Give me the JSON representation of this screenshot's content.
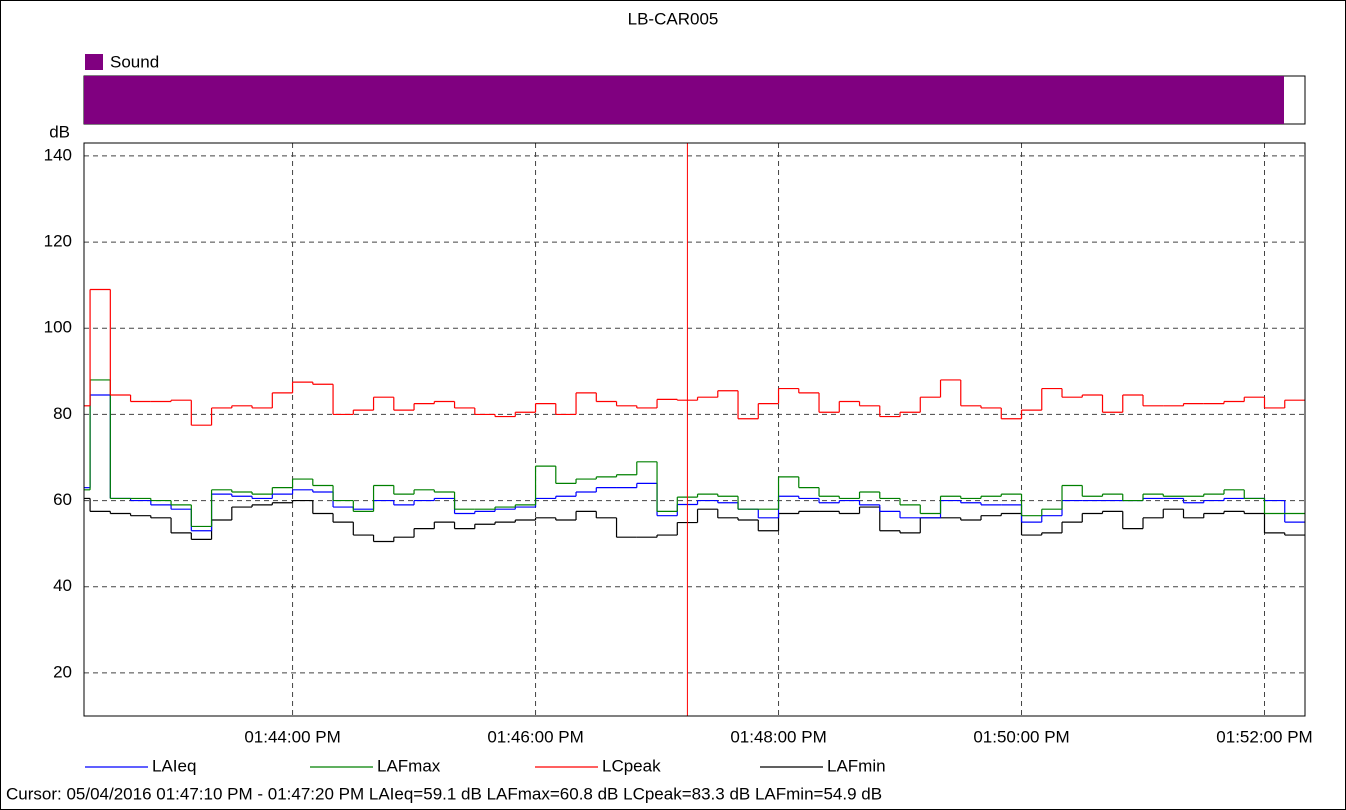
{
  "chart_data": {
    "type": "step-line",
    "title": "LB-CAR005",
    "sound_bar": {
      "label": "Sound",
      "color": "#800080"
    },
    "ylabel": "dB",
    "ylim": [
      10,
      143
    ],
    "yticks": [
      20,
      40,
      60,
      80,
      100,
      120,
      140
    ],
    "grid": true,
    "xlim": [
      "01:42:17 PM",
      "01:52:20 PM"
    ],
    "xticks": [
      "01:44:00 PM",
      "01:46:00 PM",
      "01:48:00 PM",
      "01:50:00 PM",
      "01:52:00 PM"
    ],
    "x": [
      "01:42:17 PM",
      "01:42:20 PM",
      "01:42:30 PM",
      "01:42:40 PM",
      "01:42:50 PM",
      "01:43:00 PM",
      "01:43:10 PM",
      "01:43:20 PM",
      "01:43:30 PM",
      "01:43:40 PM",
      "01:43:50 PM",
      "01:44:00 PM",
      "01:44:10 PM",
      "01:44:20 PM",
      "01:44:30 PM",
      "01:44:40 PM",
      "01:44:50 PM",
      "01:45:00 PM",
      "01:45:10 PM",
      "01:45:20 PM",
      "01:45:30 PM",
      "01:45:40 PM",
      "01:45:50 PM",
      "01:46:00 PM",
      "01:46:10 PM",
      "01:46:20 PM",
      "01:46:30 PM",
      "01:46:40 PM",
      "01:46:50 PM",
      "01:47:00 PM",
      "01:47:10 PM",
      "01:47:20 PM",
      "01:47:30 PM",
      "01:47:40 PM",
      "01:47:50 PM",
      "01:48:00 PM",
      "01:48:10 PM",
      "01:48:20 PM",
      "01:48:30 PM",
      "01:48:40 PM",
      "01:48:50 PM",
      "01:49:00 PM",
      "01:49:10 PM",
      "01:49:20 PM",
      "01:49:30 PM",
      "01:49:40 PM",
      "01:49:50 PM",
      "01:50:00 PM",
      "01:50:10 PM",
      "01:50:20 PM",
      "01:50:30 PM",
      "01:50:40 PM",
      "01:50:50 PM",
      "01:51:00 PM",
      "01:51:10 PM",
      "01:51:20 PM",
      "01:51:30 PM",
      "01:51:40 PM",
      "01:51:50 PM",
      "01:52:00 PM",
      "01:52:10 PM"
    ],
    "series": [
      {
        "name": "LAIeq",
        "color": "#0000ff",
        "values": [
          63,
          84.5,
          60.5,
          60,
          59,
          58,
          53,
          61.5,
          61,
          60.5,
          61.5,
          62.5,
          62,
          58.5,
          58,
          60,
          59,
          60,
          60.5,
          57,
          57.5,
          58,
          58.5,
          60.5,
          61,
          62,
          63,
          63,
          64,
          56.5,
          59.1,
          60,
          59.5,
          58,
          56,
          61,
          60.5,
          59.5,
          60,
          59,
          57.5,
          56,
          56,
          60,
          59.5,
          59,
          59,
          55,
          56.5,
          60,
          60,
          60,
          60,
          60.5,
          60.5,
          59.5,
          60,
          60.5,
          60.5,
          60,
          55
        ]
      },
      {
        "name": "LAFmax",
        "color": "#008000",
        "values": [
          62.5,
          88,
          60.5,
          60.5,
          60,
          59,
          54,
          62.5,
          62,
          61.5,
          63,
          65,
          63.5,
          60,
          57.5,
          63.5,
          61.5,
          62.5,
          62,
          58,
          58,
          58.5,
          59,
          68,
          64,
          65,
          65.5,
          66,
          69,
          57.5,
          60.8,
          61.5,
          61,
          58,
          58,
          65.5,
          63,
          61,
          60.5,
          62,
          60.5,
          59,
          57,
          61,
          60.5,
          61,
          61.5,
          56.5,
          58,
          63.5,
          61,
          61.5,
          60,
          61.5,
          61,
          61,
          61.5,
          62.5,
          60.5,
          57,
          57
        ]
      },
      {
        "name": "LCpeak",
        "color": "#ff0000",
        "values": [
          82,
          109,
          84.5,
          83,
          83,
          83.3,
          77.5,
          81.5,
          82,
          81.5,
          85,
          87.5,
          87,
          80,
          81,
          84,
          81,
          82.5,
          83,
          81.5,
          80,
          79.5,
          80.5,
          82.5,
          80,
          85,
          83,
          82,
          81.5,
          83.5,
          83.3,
          84,
          85.5,
          79,
          82.5,
          86,
          85,
          80.5,
          83,
          82,
          79.5,
          80.5,
          84,
          88,
          82,
          81.5,
          79,
          81,
          86,
          84,
          84.5,
          80.5,
          84.5,
          82,
          82,
          82.5,
          82.5,
          83,
          84,
          81.5,
          83.3
        ]
      },
      {
        "name": "LAFmin",
        "color": "#000000",
        "values": [
          60.5,
          57.5,
          57,
          56.5,
          56,
          52.5,
          51,
          55.5,
          58.5,
          59,
          59.5,
          60,
          57,
          55,
          52,
          50.5,
          51.5,
          53.5,
          55,
          53.5,
          54.5,
          55,
          55.5,
          56,
          55.5,
          57.5,
          56,
          51.5,
          51.5,
          52,
          54.9,
          58,
          56,
          55.5,
          53,
          57,
          57.5,
          57.5,
          57,
          58.5,
          53,
          52.5,
          56,
          56,
          55.5,
          56.5,
          57,
          52,
          52.5,
          55,
          57,
          57.5,
          53.5,
          56,
          58,
          56,
          57,
          57.5,
          57,
          52.5,
          52
        ]
      }
    ],
    "cursor": "Cursor: 05/04/2016 01:47:10 PM - 01:47:20 PM  LAIeq=59.1 dB  LAFmax=60.8 dB  LCpeak=83.3 dB  LAFmin=54.9 dB"
  }
}
